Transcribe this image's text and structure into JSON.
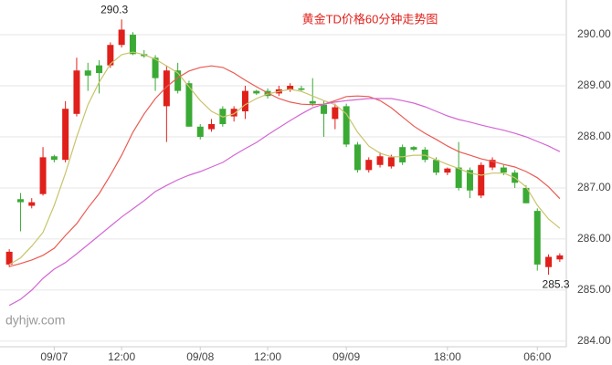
{
  "chart_data": {
    "type": "candlestick",
    "title": "黄金TD价格60分钟走势图",
    "watermark": "dyhjw.com",
    "categories": [
      null,
      null,
      null,
      null,
      "09/07",
      null,
      null,
      null,
      null,
      null,
      "12:00",
      null,
      null,
      null,
      null,
      null,
      null,
      "09/08",
      null,
      null,
      null,
      null,
      null,
      "12:00",
      null,
      null,
      null,
      null,
      null,
      null,
      "09/09",
      null,
      null,
      null,
      null,
      null,
      null,
      null,
      null,
      "18:00",
      null,
      null,
      null,
      null,
      null,
      null,
      null,
      "06:00",
      null,
      null
    ],
    "open": [
      285.5,
      286.78,
      286.65,
      286.88,
      287.62,
      287.55,
      288.45,
      289.3,
      289.4,
      289.4,
      289.8,
      290.0,
      289.62,
      289.55,
      288.6,
      289.3,
      289.05,
      288.2,
      288.15,
      288.55,
      288.4,
      288.5,
      288.9,
      288.9,
      288.85,
      288.92,
      288.95,
      288.7,
      288.63,
      288.35,
      288.6,
      287.85,
      287.35,
      287.45,
      287.42,
      287.8,
      287.8,
      287.75,
      287.55,
      287.3,
      287.4,
      287.35,
      286.85,
      287.4,
      287.4,
      287.3,
      287.0,
      286.55,
      285.45,
      285.6
    ],
    "high": [
      285.8,
      286.9,
      286.8,
      287.8,
      287.65,
      288.7,
      289.55,
      289.45,
      289.5,
      289.85,
      290.3,
      290.05,
      289.7,
      289.6,
      289.4,
      289.45,
      289.1,
      288.25,
      288.35,
      288.6,
      288.6,
      289.0,
      288.92,
      288.95,
      289.0,
      289.05,
      289.0,
      289.15,
      288.7,
      288.65,
      288.65,
      287.9,
      287.6,
      287.7,
      287.65,
      287.85,
      287.82,
      287.8,
      287.6,
      287.4,
      287.9,
      287.4,
      287.5,
      287.6,
      287.45,
      287.35,
      287.05,
      286.6,
      285.7,
      285.72
    ],
    "low": [
      285.45,
      286.15,
      286.6,
      286.85,
      287.5,
      287.5,
      288.4,
      288.9,
      288.85,
      289.35,
      289.75,
      289.6,
      289.55,
      288.9,
      287.9,
      288.85,
      288.2,
      287.95,
      288.1,
      288.2,
      288.3,
      288.35,
      288.82,
      288.75,
      288.8,
      288.88,
      288.9,
      288.6,
      288.0,
      288.15,
      287.8,
      287.3,
      287.3,
      287.4,
      287.38,
      287.45,
      287.72,
      287.5,
      287.25,
      287.25,
      286.95,
      286.8,
      286.8,
      287.35,
      287.25,
      287.0,
      286.7,
      285.38,
      285.3,
      285.55
    ],
    "close": [
      285.75,
      286.72,
      286.72,
      287.6,
      287.55,
      288.55,
      289.3,
      289.2,
      289.25,
      289.8,
      290.1,
      289.62,
      289.58,
      289.15,
      289.3,
      288.9,
      288.2,
      288.0,
      288.25,
      288.25,
      288.55,
      288.9,
      288.85,
      288.8,
      288.93,
      289.0,
      288.92,
      288.65,
      288.45,
      288.58,
      287.85,
      287.35,
      287.55,
      287.62,
      287.6,
      287.5,
      287.75,
      287.55,
      287.3,
      287.38,
      287.0,
      286.95,
      287.45,
      287.55,
      287.3,
      287.1,
      286.7,
      285.5,
      285.65,
      285.68
    ],
    "up_color": "#e0201b",
    "down_color": "#3aaa35",
    "lines": [
      {
        "color": "#c8c46a",
        "values": [
          285.5,
          285.63,
          285.86,
          286.13,
          286.66,
          287.29,
          288.0,
          288.63,
          289.07,
          289.43,
          289.61,
          289.66,
          289.61,
          289.52,
          289.39,
          289.25,
          288.98,
          288.71,
          288.5,
          288.39,
          288.45,
          288.63,
          288.75,
          288.84,
          288.89,
          288.93,
          288.89,
          288.8,
          288.71,
          288.63,
          288.45,
          288.09,
          287.82,
          287.68,
          287.61,
          287.61,
          287.64,
          287.64,
          287.55,
          287.46,
          287.38,
          287.29,
          287.25,
          287.29,
          287.29,
          287.2,
          287.02,
          286.66,
          286.39,
          286.21
        ]
      },
      {
        "color": "#ea5a52",
        "values": [
          285.46,
          285.52,
          285.59,
          285.68,
          285.82,
          286.07,
          286.3,
          286.61,
          286.89,
          287.25,
          287.64,
          288.09,
          288.45,
          288.75,
          288.98,
          289.16,
          289.29,
          289.36,
          289.39,
          289.36,
          289.25,
          289.11,
          288.98,
          288.86,
          288.75,
          288.68,
          288.64,
          288.63,
          288.64,
          288.71,
          288.79,
          288.8,
          288.79,
          288.71,
          288.57,
          288.39,
          288.21,
          288.07,
          287.95,
          287.82,
          287.71,
          287.64,
          287.57,
          287.52,
          287.46,
          287.41,
          287.32,
          287.2,
          287.02,
          286.79
        ]
      },
      {
        "color": "#d466d4",
        "values": [
          284.7,
          284.82,
          285.0,
          285.23,
          285.41,
          285.54,
          285.71,
          285.89,
          286.07,
          286.25,
          286.43,
          286.59,
          286.75,
          286.93,
          287.05,
          287.16,
          287.25,
          287.32,
          287.41,
          287.5,
          287.64,
          287.77,
          287.89,
          288.04,
          288.18,
          288.32,
          288.45,
          288.57,
          288.64,
          288.68,
          288.71,
          288.73,
          288.75,
          288.75,
          288.75,
          288.71,
          288.66,
          288.59,
          288.5,
          288.41,
          288.34,
          288.29,
          288.23,
          288.18,
          288.13,
          288.07,
          288.0,
          287.91,
          287.82,
          287.71
        ]
      }
    ],
    "ylim": [
      283.89,
      290.68
    ],
    "yticks": [
      {
        "value": 284,
        "label": "284.00"
      },
      {
        "value": 285,
        "label": "285.00"
      },
      {
        "value": 286,
        "label": "286.00"
      },
      {
        "value": 287,
        "label": "287.00"
      },
      {
        "value": 288,
        "label": "288.00"
      },
      {
        "value": 289,
        "label": "289.00"
      },
      {
        "value": 290,
        "label": "290.00"
      }
    ],
    "grid": true
  }
}
